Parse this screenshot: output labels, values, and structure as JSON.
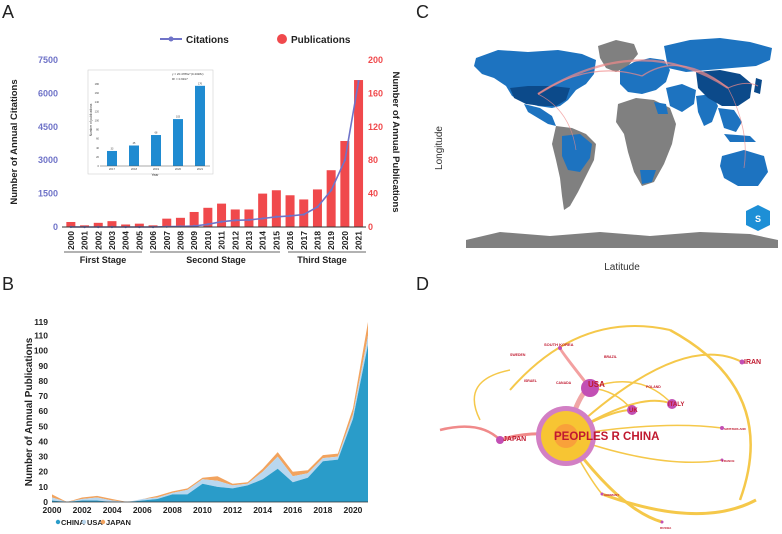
{
  "panels": {
    "a": "A",
    "b": "B",
    "c": "C",
    "d": "D"
  },
  "colors": {
    "citations": "#6f73c8",
    "publications": "#f0494c",
    "inset_bar": "#1f8bd1",
    "china": "#2a9cc9",
    "usa": "#b9d7ef",
    "japan": "#f2a35e",
    "map_dark": "#0c4a8a",
    "map_mid": "#1d73c0",
    "map_gray": "#808080"
  },
  "chart_data": [
    {
      "type": "bar",
      "id": "A",
      "legend": [
        "Citations",
        "Publications"
      ],
      "categories": [
        "2000",
        "2001",
        "2002",
        "2003",
        "2004",
        "2005",
        "2006",
        "2007",
        "2008",
        "2009",
        "2010",
        "2011",
        "2012",
        "2013",
        "2014",
        "2015",
        "2016",
        "2017",
        "2018",
        "2019",
        "2020",
        "2021"
      ],
      "series": [
        {
          "name": "Publications",
          "kind": "bar",
          "axis": "right",
          "values": [
            6,
            2,
            5,
            7,
            3,
            4,
            2,
            10,
            11,
            18,
            23,
            28,
            21,
            21,
            40,
            44,
            38,
            33,
            45,
            68,
            103,
            176
          ]
        },
        {
          "name": "Citations",
          "kind": "line",
          "axis": "left",
          "values": [
            5,
            0,
            0,
            0,
            0,
            0,
            0,
            15,
            25,
            45,
            120,
            240,
            300,
            320,
            380,
            460,
            500,
            560,
            900,
            1650,
            3000,
            6550
          ]
        }
      ],
      "ylabel_left": "Number of Annual Citations",
      "ylabel_right": "Number of Annual Publications",
      "ylim_left": [
        0,
        7500
      ],
      "ylim_right": [
        0,
        200
      ],
      "yticks_left": [
        "0",
        "1500",
        "3000",
        "4500",
        "6000",
        "7500"
      ],
      "yticks_right": [
        "0",
        "40",
        "80",
        "120",
        "160",
        "200"
      ],
      "stages": [
        "First Stage",
        "Second Stage",
        "Third Stage"
      ],
      "inset": {
        "type": "bar",
        "categories": [
          "2017",
          "2018",
          "2019",
          "2020",
          "2021"
        ],
        "values": [
          33,
          45,
          68,
          103,
          176
        ],
        "xlabel": "Year",
        "ylabel": "Number of publications",
        "yticks": [
          "0",
          "20",
          "40",
          "60",
          "80",
          "100",
          "120",
          "140",
          "160",
          "180"
        ],
        "ylim": [
          0,
          180
        ],
        "equation": "y = 20.4786e^(0.4328x)",
        "r_squared": "R² = 0.9917"
      }
    },
    {
      "type": "area",
      "id": "B",
      "x": [
        2000,
        2001,
        2002,
        2003,
        2004,
        2005,
        2006,
        2007,
        2008,
        2009,
        2010,
        2011,
        2012,
        2013,
        2014,
        2015,
        2016,
        2017,
        2018,
        2019,
        2020,
        2021
      ],
      "series": [
        {
          "name": "CHINA",
          "values": [
            1,
            0,
            1,
            1,
            0,
            0,
            1,
            2,
            5,
            5,
            12,
            10,
            9,
            11,
            15,
            22,
            13,
            16,
            27,
            28,
            55,
            104
          ]
        },
        {
          "name": "USA",
          "values": [
            2,
            0,
            1,
            2,
            1,
            0,
            1,
            1,
            1,
            3,
            3,
            4,
            2,
            1,
            5,
            8,
            4,
            3,
            2,
            2,
            3,
            6
          ]
        },
        {
          "name": "JAPAN",
          "values": [
            2,
            0,
            1,
            1,
            1,
            0,
            0,
            1,
            1,
            1,
            1,
            3,
            1,
            1,
            2,
            3,
            3,
            2,
            2,
            2,
            4,
            9
          ]
        }
      ],
      "ylabel": "Number of Annual Publications",
      "ylim": [
        0,
        119
      ],
      "yticks": [
        "0",
        "10",
        "20",
        "30",
        "40",
        "50",
        "60",
        "70",
        "80",
        "90",
        "100",
        "110",
        "119"
      ],
      "xticks": [
        "2000",
        "2002",
        "2004",
        "2006",
        "2008",
        "2010",
        "2012",
        "2014",
        "2016",
        "2018",
        "2020"
      ]
    }
  ],
  "map": {
    "xlabel": "Latitude",
    "ylabel": "Longitude",
    "logo_text": "S"
  },
  "network": {
    "nodes": [
      {
        "label": "PEOPLES R CHINA",
        "size": "xl"
      },
      {
        "label": "USA",
        "size": "md"
      },
      {
        "label": "JAPAN",
        "size": "sm"
      },
      {
        "label": "UK",
        "size": "sm"
      },
      {
        "label": "ITALY",
        "size": "sm"
      },
      {
        "label": "IRAN",
        "size": "xs"
      },
      {
        "label": "SOUTH KOREA",
        "size": "xs"
      },
      {
        "label": "SWEDEN",
        "size": "xs"
      },
      {
        "label": "BRAZIL",
        "size": "xs"
      },
      {
        "label": "ISRAEL",
        "size": "xs"
      },
      {
        "label": "CANADA",
        "size": "xs"
      },
      {
        "label": "POLAND",
        "size": "xs"
      },
      {
        "label": "SWITZERLAND",
        "size": "xs"
      },
      {
        "label": "FRANCE",
        "size": "xs"
      },
      {
        "label": "GERMANY",
        "size": "xs"
      },
      {
        "label": "RUSSIA",
        "size": "xs"
      }
    ]
  }
}
